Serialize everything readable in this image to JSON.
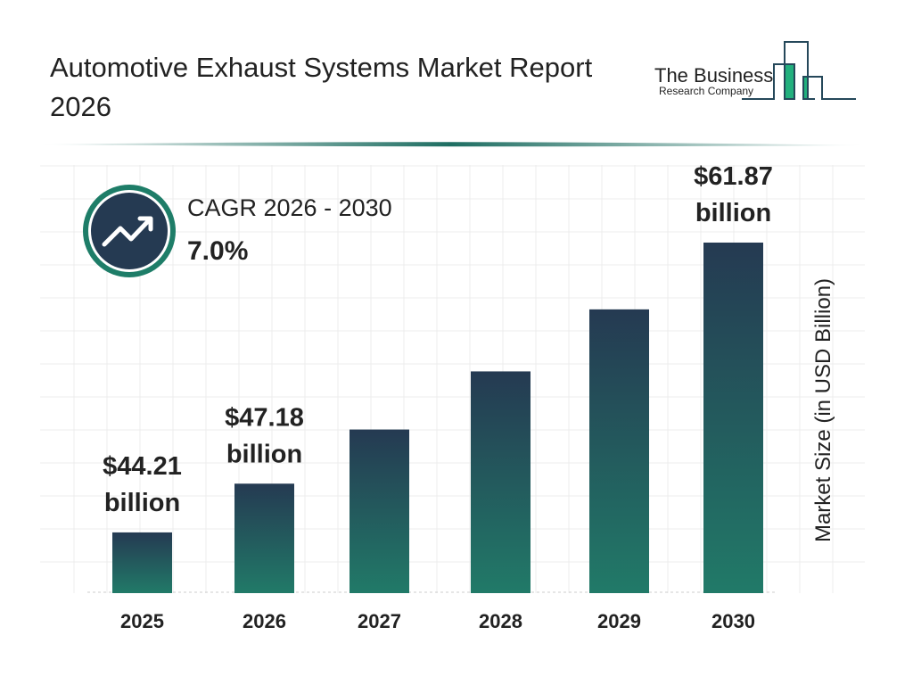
{
  "header": {
    "title": "Automotive Exhaust Systems Market Report 2026"
  },
  "logo": {
    "line1": "The Business",
    "line2": "Research Company"
  },
  "cagr": {
    "label": "CAGR 2026 - 2030",
    "value": "7.0%",
    "icon": "trending-up-icon"
  },
  "colors": {
    "bar_top": "#253a52",
    "bar_bottom": "#217a68",
    "accent": "#1e7d68",
    "logo_green": "#22b07d"
  },
  "chart_data": {
    "type": "bar",
    "title": "Automotive Exhaust Systems Market Report 2026",
    "categories": [
      "2025",
      "2026",
      "2027",
      "2028",
      "2029",
      "2030"
    ],
    "values": [
      44.21,
      47.18,
      50.48,
      54.02,
      57.8,
      61.87
    ],
    "data_labels": [
      {
        "index": 0,
        "line1": "$44.21",
        "line2": "billion"
      },
      {
        "index": 1,
        "line1": "$47.18",
        "line2": "billion"
      },
      {
        "index": 5,
        "line1": "$61.87",
        "line2": "billion"
      }
    ],
    "xlabel": "",
    "ylabel": "Market Size (in USD Billion)",
    "grid": true
  }
}
